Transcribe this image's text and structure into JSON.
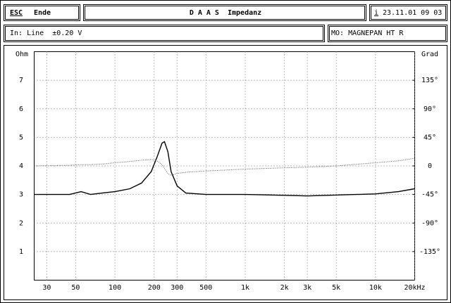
{
  "header": {
    "key": "ESC",
    "key_label": "Ende",
    "title": "D A A S  Impedanz",
    "info_key": "i",
    "datetime": "23.11.01 09 03",
    "input": "In: Line  ±0.20 V",
    "model": "MO: MAGNEPAN HT R"
  },
  "chart_data": {
    "type": "line",
    "y_label": "Ohm",
    "y2_label": "Grad",
    "xscale": "log",
    "grid": true,
    "xlim": [
      24,
      20000
    ],
    "xticks": [
      30,
      50,
      100,
      200,
      300,
      500,
      {
        "value": 1000,
        "label": "1k"
      },
      {
        "value": 2000,
        "label": "2k"
      },
      {
        "value": 3000,
        "label": "3k"
      },
      {
        "value": 5000,
        "label": "5k"
      },
      {
        "value": 10000,
        "label": "10k"
      },
      {
        "value": 20000,
        "label": "20kHz"
      }
    ],
    "ylim": [
      0,
      8
    ],
    "yticks": [
      1,
      2,
      3,
      4,
      5,
      6,
      7
    ],
    "y2lim": [
      -180,
      180
    ],
    "y2ticks": [
      {
        "value": 135,
        "label": "135°"
      },
      {
        "value": 90,
        "label": "90°"
      },
      {
        "value": 45,
        "label": "45°"
      },
      0,
      {
        "value": -45,
        "label": "-45°"
      },
      {
        "value": -90,
        "label": "-90°"
      },
      {
        "value": -135,
        "label": "-135°"
      }
    ],
    "x": [
      24,
      45,
      55,
      65,
      80,
      100,
      130,
      160,
      190,
      210,
      230,
      240,
      255,
      270,
      300,
      350,
      500,
      1000,
      2000,
      3000,
      5000,
      10000,
      15000,
      20000
    ],
    "series": [
      {
        "color": "#000000",
        "values": [
          3.0,
          3.0,
          3.1,
          3.0,
          3.05,
          3.1,
          3.2,
          3.4,
          3.8,
          4.3,
          4.8,
          4.85,
          4.5,
          3.8,
          3.3,
          3.05,
          3.0,
          3.0,
          2.97,
          2.95,
          2.98,
          3.02,
          3.1,
          3.2
        ]
      },
      {
        "color": "#555555",
        "axis": "y2",
        "values": [
          0,
          1,
          2,
          2,
          3,
          5,
          7,
          9,
          10,
          8,
          2,
          -4,
          -12,
          -15,
          -12,
          -10,
          -8,
          -5,
          -3,
          -2,
          0,
          5,
          8,
          12
        ]
      }
    ]
  }
}
